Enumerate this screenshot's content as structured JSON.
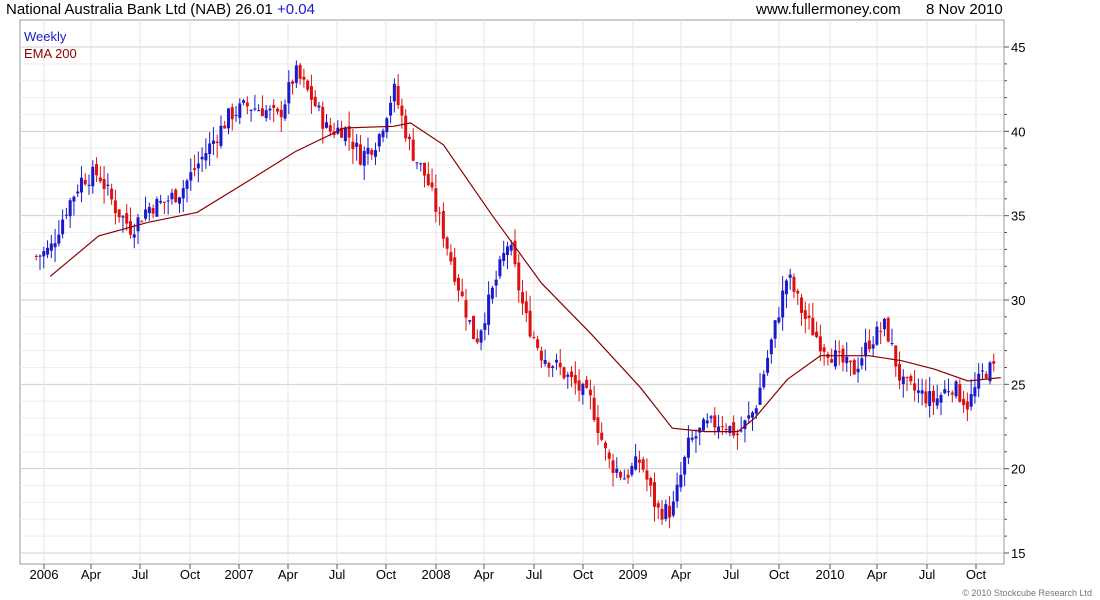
{
  "header": {
    "title": "National Australia Bank Ltd (NAB) 26.01",
    "change": "+0.04",
    "site": "www.fullermoney.com",
    "date": "8 Nov 2010"
  },
  "legend": {
    "weekly": "Weekly",
    "ema": "EMA 200"
  },
  "copyright": "© 2010 Stockcube Research Ltd",
  "colors": {
    "up": "#1a1acc",
    "down": "#dd1111",
    "ema": "#8b0000",
    "grid": "#d9d9d9",
    "legend_weekly": "#1a1acc",
    "legend_ema": "#8b0000"
  },
  "chart_data": {
    "type": "candlestick",
    "title": "National Australia Bank Ltd (NAB) 26.01",
    "ylim": [
      15,
      45
    ],
    "yticks": [
      15,
      20,
      25,
      30,
      35,
      40,
      45
    ],
    "grid": true,
    "x_tick_labels": [
      "2006",
      "Apr",
      "Jul",
      "Oct",
      "2007",
      "Apr",
      "Jul",
      "Oct",
      "2008",
      "Apr",
      "Jul",
      "Oct",
      "2009",
      "Apr",
      "Jul",
      "Oct",
      "2010",
      "Apr",
      "Jul",
      "Oct"
    ],
    "series": [
      {
        "name": "Weekly",
        "note": "approximate weekly closing path, Jan 2006 - Nov 2010",
        "dates": [
          "2005-12",
          "2006-01",
          "2006-02",
          "2006-03",
          "2006-04",
          "2006-05",
          "2006-06",
          "2006-07",
          "2006-08",
          "2006-09",
          "2006-10",
          "2006-11",
          "2006-12",
          "2007-01",
          "2007-02",
          "2007-03",
          "2007-04",
          "2007-05",
          "2007-06",
          "2007-07",
          "2007-08",
          "2007-09",
          "2007-10",
          "2007-11",
          "2007-12",
          "2008-01",
          "2008-02",
          "2008-03",
          "2008-04",
          "2008-05",
          "2008-06",
          "2008-07",
          "2008-08",
          "2008-09",
          "2008-10",
          "2008-11",
          "2008-12",
          "2009-01",
          "2009-02",
          "2009-03",
          "2009-04",
          "2009-05",
          "2009-06",
          "2009-07",
          "2009-08",
          "2009-09",
          "2009-10",
          "2009-11",
          "2009-12",
          "2010-01",
          "2010-02",
          "2010-03",
          "2010-04",
          "2010-05",
          "2010-06",
          "2010-07",
          "2010-08",
          "2010-09",
          "2010-10",
          "2010-11"
        ],
        "values": [
          32.5,
          33.0,
          35.5,
          37.2,
          37.5,
          35.5,
          34.2,
          35.5,
          35.8,
          36.5,
          38.0,
          39.5,
          41.0,
          41.5,
          41.3,
          40.8,
          43.5,
          42.0,
          40.0,
          40.2,
          38.5,
          39.5,
          42.5,
          39.0,
          37.2,
          34.0,
          30.5,
          27.5,
          30.5,
          33.5,
          29.0,
          26.8,
          26.0,
          25.0,
          24.0,
          20.5,
          19.5,
          20.5,
          17.5,
          17.5,
          21.5,
          22.5,
          22.8,
          22.0,
          23.5,
          27.5,
          31.5,
          29.0,
          27.5,
          26.5,
          25.8,
          27.5,
          28.5,
          25.0,
          24.5,
          24.0,
          25.0,
          23.8,
          25.8,
          26.01
        ]
      },
      {
        "name": "EMA 200",
        "note": "approximate path",
        "dates": [
          "2006-01",
          "2006-04",
          "2006-07",
          "2006-10",
          "2007-01",
          "2007-04",
          "2007-07",
          "2007-10",
          "2007-11",
          "2008-01",
          "2008-04",
          "2008-07",
          "2008-10",
          "2009-01",
          "2009-03",
          "2009-05",
          "2009-07",
          "2009-08",
          "2009-10",
          "2009-12",
          "2010-03",
          "2010-05",
          "2010-07",
          "2010-09",
          "2010-11"
        ],
        "values": [
          31.4,
          33.8,
          34.6,
          35.2,
          37.0,
          38.8,
          40.2,
          40.3,
          40.5,
          39.2,
          35.0,
          31.0,
          28.0,
          24.8,
          22.4,
          22.2,
          22.2,
          23.0,
          25.3,
          26.7,
          26.7,
          26.4,
          25.9,
          25.2,
          25.4
        ]
      }
    ]
  }
}
